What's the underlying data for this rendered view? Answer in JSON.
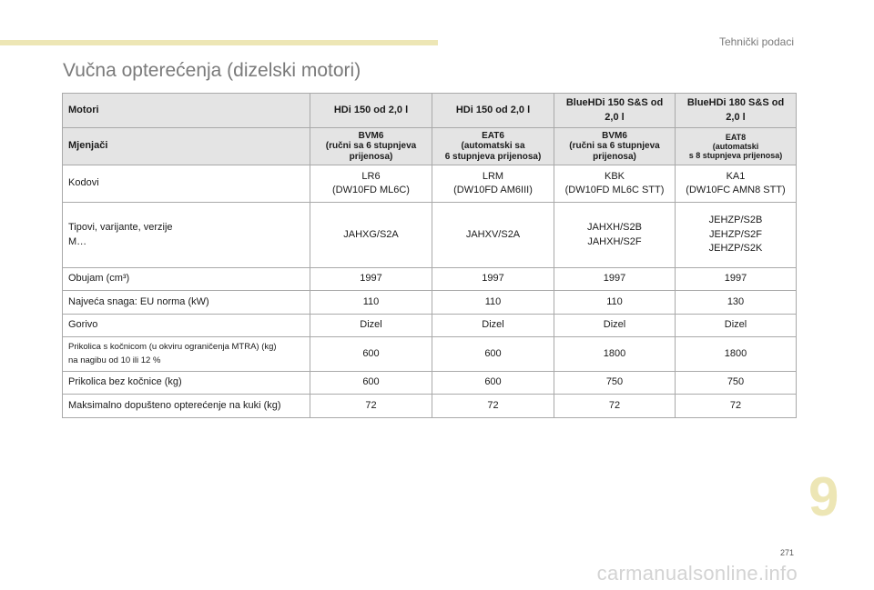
{
  "section_label": "Tehnički podaci",
  "title": "Vučna opterećenja (dizelski motori)",
  "table": {
    "header_engines": {
      "label": "Motori",
      "cols": [
        "HDi 150 od 2,0 l",
        "HDi 150 od 2,0 l",
        "BlueHDi 150 S&S od\n2,0 l",
        "BlueHDi 180 S&S od\n2,0 l"
      ]
    },
    "header_gearboxes": {
      "label": "Mjenjači",
      "cols": [
        "BVM6\n(ručni sa 6 stupnjeva\nprijenosa)",
        "EAT6\n(automatski sa\n6 stupnjeva prijenosa)",
        "BVM6\n(ručni sa 6 stupnjeva\nprijenosa)",
        "EAT8\n(automatski\ns 8 stupnjeva prijenosa)"
      ]
    },
    "rows": [
      {
        "label": "Kodovi",
        "values": [
          "LR6\n(DW10FD ML6C)",
          "LRM\n(DW10FD AM6III)",
          "KBK\n(DW10FD ML6C STT)",
          "KA1\n(DW10FC AMN8 STT)"
        ]
      },
      {
        "label": "Tipovi, varijante, verzije\nM…",
        "values": [
          "JAHXG/S2A",
          "JAHXV/S2A",
          "JAHXH/S2B\nJAHXH/S2F",
          "JEHZP/S2B\nJEHZP/S2F\nJEHZP/S2K"
        ]
      },
      {
        "label": "Obujam (cm³)",
        "values": [
          "1997",
          "1997",
          "1997",
          "1997"
        ]
      },
      {
        "label": "Najveća snaga: EU norma (kW)",
        "values": [
          "110",
          "110",
          "110",
          "130"
        ]
      },
      {
        "label": "Gorivo",
        "values": [
          "Dizel",
          "Dizel",
          "Dizel",
          "Dizel"
        ]
      },
      {
        "label": "Prikolica s kočnicom (u okviru ograničenja MTRA) (kg)\nna nagibu od 10 ili 12 %",
        "values": [
          "600",
          "600",
          "1800",
          "1800"
        ]
      },
      {
        "label": "Prikolica bez kočnice (kg)",
        "values": [
          "600",
          "600",
          "750",
          "750"
        ]
      },
      {
        "label": "Maksimalno dopušteno opterećenje na kuki (kg)",
        "values": [
          "72",
          "72",
          "72",
          "72"
        ]
      }
    ]
  },
  "chapter_number": "9",
  "page_number": "271",
  "watermark": "carmanualsonline.info"
}
